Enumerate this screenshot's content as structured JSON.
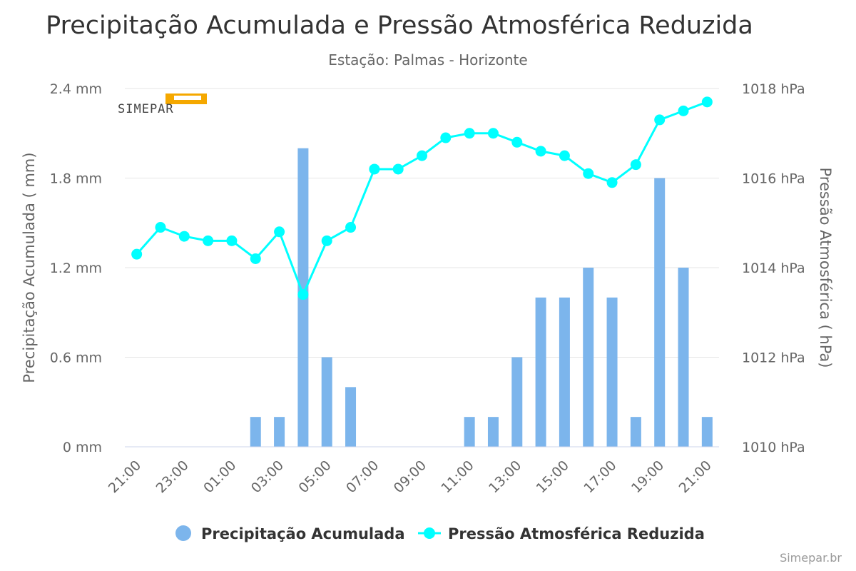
{
  "title": "Precipitação Acumulada e Pressão Atmosférica Reduzida",
  "subtitle": "Estação: Palmas - Horizonte",
  "logo_text": "SIMEPAR",
  "credit": "Simepar.br",
  "colors": {
    "bar": "#7cb5ec",
    "line": "#00ffff",
    "grid": "#e6e6e6",
    "axis_line": "#ccd6eb"
  },
  "chart_data": {
    "type": "bar+line",
    "categories": [
      "21:00",
      "22:00",
      "23:00",
      "00:00",
      "01:00",
      "02:00",
      "03:00",
      "04:00",
      "05:00",
      "06:00",
      "07:00",
      "08:00",
      "09:00",
      "10:00",
      "11:00",
      "12:00",
      "13:00",
      "14:00",
      "15:00",
      "16:00",
      "17:00",
      "18:00",
      "19:00",
      "20:00",
      "21:00"
    ],
    "x_tick_labels": [
      "21:00",
      "23:00",
      "01:00",
      "03:00",
      "05:00",
      "07:00",
      "09:00",
      "11:00",
      "13:00",
      "15:00",
      "17:00",
      "19:00",
      "21:00"
    ],
    "y_left": {
      "label": "Precipitação Acumulada ( mm)",
      "min": 0,
      "max": 2.4,
      "ticks": [
        0,
        0.6,
        1.2,
        1.8,
        2.4
      ],
      "tick_labels": [
        "0 mm",
        "0.6 mm",
        "1.2 mm",
        "1.8 mm",
        "2.4 mm"
      ]
    },
    "y_right": {
      "label": "Pressão Atmosférica ( hPa)",
      "min": 1010,
      "max": 1018,
      "ticks": [
        1010,
        1012,
        1014,
        1016,
        1018
      ],
      "tick_labels": [
        "1010 hPa",
        "1012 hPa",
        "1014 hPa",
        "1016 hPa",
        "1018 hPa"
      ]
    },
    "series": [
      {
        "name": "Precipitação Acumulada",
        "type": "bar",
        "axis": "left",
        "values": [
          0,
          0,
          0,
          0,
          0,
          0.2,
          0.2,
          2.0,
          0.6,
          0.4,
          0,
          0,
          0,
          0,
          0.2,
          0.2,
          0.6,
          1.0,
          1.0,
          1.2,
          1.0,
          0.2,
          1.8,
          1.2,
          0.2
        ]
      },
      {
        "name": "Pressão Atmosférica Reduzida",
        "type": "line",
        "axis": "right",
        "values": [
          1014.3,
          1014.9,
          1014.7,
          1014.6,
          1014.6,
          1014.2,
          1014.8,
          1013.4,
          1014.6,
          1014.9,
          1016.2,
          1016.2,
          1016.5,
          1016.9,
          1017.0,
          1017.0,
          1016.8,
          1016.6,
          1016.5,
          1016.1,
          1015.9,
          1016.3,
          1017.3,
          1017.5,
          1017.7
        ]
      }
    ],
    "legend_position": "bottom-right",
    "grid": true
  }
}
